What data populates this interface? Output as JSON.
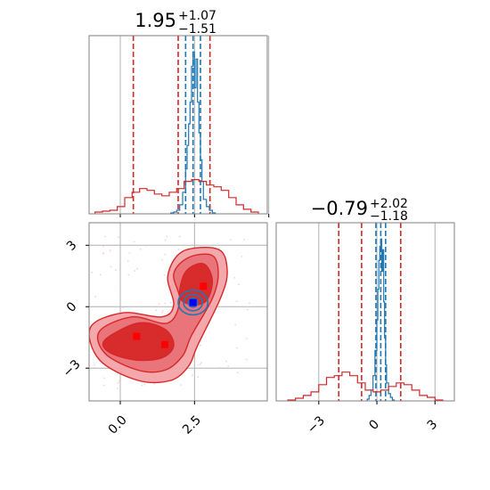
{
  "chart_data": [
    {
      "type": "histogram",
      "panel": "top-left marginal",
      "title_value": "1.95",
      "title_plus": "+1.07",
      "title_minus": "−1.51",
      "xlim": [
        -1.05,
        4.95
      ],
      "grid": true,
      "series": [
        {
          "color": "#1f77b4",
          "line_style": "solid",
          "bin_edges": [
            1.7,
            1.8,
            1.9,
            2.0,
            2.1,
            2.2,
            2.25,
            2.3,
            2.35,
            2.4,
            2.45,
            2.5,
            2.55,
            2.6,
            2.65,
            2.7,
            2.75,
            2.8,
            2.9,
            3.0,
            3.1,
            3.2
          ],
          "counts": [
            0.005,
            0.01,
            0.02,
            0.05,
            0.12,
            0.25,
            0.38,
            0.5,
            0.62,
            0.82,
            0.9,
            0.7,
            0.86,
            0.62,
            0.45,
            0.3,
            0.18,
            0.08,
            0.04,
            0.02,
            0.005
          ]
        },
        {
          "color": "#d62728",
          "line_style": "solid",
          "bin_edges": [
            -0.85,
            -0.6,
            -0.35,
            -0.1,
            0.15,
            0.4,
            0.65,
            0.9,
            1.15,
            1.4,
            1.65,
            1.9,
            2.15,
            2.4,
            2.65,
            2.9,
            3.15,
            3.4,
            3.65,
            3.9,
            4.15,
            4.4,
            4.65
          ],
          "counts": [
            0.01,
            0.015,
            0.02,
            0.04,
            0.09,
            0.12,
            0.14,
            0.13,
            0.11,
            0.1,
            0.12,
            0.14,
            0.18,
            0.19,
            0.18,
            0.16,
            0.15,
            0.13,
            0.09,
            0.05,
            0.025,
            0.01
          ]
        }
      ],
      "quantile_lines": [
        {
          "color": "#1f77b4",
          "values": [
            2.2,
            2.45,
            2.7
          ]
        },
        {
          "color": "#d62728",
          "values": [
            0.44,
            1.95,
            3.02
          ]
        }
      ]
    },
    {
      "type": "contour",
      "panel": "bottom-left 2D density",
      "xlim": [
        -1.05,
        4.95
      ],
      "ylim": [
        -4.6,
        4.1
      ],
      "yticks": [
        "3",
        "0",
        "−3"
      ],
      "xticks": [
        "0.0",
        "2.5"
      ],
      "grid": true,
      "red_contours": [
        {
          "level": "outer",
          "color": "#d62728",
          "fill": "#f4a3a8",
          "points": [
            [
              -1.0,
              -1.0
            ],
            [
              0.1,
              -0.3
            ],
            [
              1.4,
              -0.5
            ],
            [
              1.8,
              0.1
            ],
            [
              1.6,
              1.5
            ],
            [
              2.1,
              2.7
            ],
            [
              3.3,
              2.8
            ],
            [
              3.6,
              1.8
            ],
            [
              3.4,
              0.5
            ],
            [
              2.6,
              -1.9
            ],
            [
              2.3,
              -2.9
            ],
            [
              1.7,
              -3.6
            ],
            [
              0.6,
              -3.6
            ],
            [
              -0.7,
              -2.6
            ]
          ]
        },
        {
          "level": "middle",
          "color": "#d62728",
          "fill": "#e87277",
          "points": [
            [
              -0.7,
              -1.2
            ],
            [
              0.4,
              -0.5
            ],
            [
              1.6,
              -0.8
            ],
            [
              2.0,
              0.3
            ],
            [
              1.8,
              1.6
            ],
            [
              2.3,
              2.4
            ],
            [
              3.1,
              2.5
            ],
            [
              3.3,
              1.6
            ],
            [
              3.1,
              0.4
            ],
            [
              2.4,
              -1.4
            ],
            [
              2.1,
              -2.4
            ],
            [
              1.5,
              -3.1
            ],
            [
              0.6,
              -3.1
            ],
            [
              -0.5,
              -2.3
            ]
          ]
        },
        {
          "level": "inner",
          "color": "#d62728",
          "fill": "#d62728",
          "points": [
            [
              -0.5,
              -1.6
            ],
            [
              0.6,
              -0.8
            ],
            [
              1.5,
              -1.1
            ],
            [
              1.8,
              -1.9
            ],
            [
              1.4,
              -2.5
            ],
            [
              0.5,
              -2.6
            ],
            [
              -0.4,
              -2.2
            ]
          ]
        },
        {
          "level": "inner2",
          "color": "#d62728",
          "fill": "#d62728",
          "points": [
            [
              2.0,
              0.5
            ],
            [
              2.2,
              1.7
            ],
            [
              2.8,
              2.1
            ],
            [
              3.1,
              1.3
            ],
            [
              2.9,
              0.3
            ],
            [
              2.4,
              0.1
            ]
          ]
        }
      ],
      "blue_contours": [
        {
          "color": "#1f77b4",
          "rx": 0.5,
          "ry": 0.6,
          "cx": 2.45,
          "cy": 0.2
        },
        {
          "color": "#1f77b4",
          "rx": 0.32,
          "ry": 0.4,
          "cx": 2.45,
          "cy": 0.2
        },
        {
          "color": "#1f77b4",
          "rx": 0.16,
          "ry": 0.22,
          "cx": 2.45,
          "cy": 0.2
        }
      ],
      "red_markers": [
        [
          0.55,
          -1.45
        ],
        [
          1.5,
          -1.85
        ],
        [
          2.8,
          1.0
        ]
      ],
      "blue_marker": [
        2.45,
        0.2
      ]
    },
    {
      "type": "histogram",
      "panel": "bottom-right marginal",
      "title_value": "−0.79",
      "title_plus": "+2.02",
      "title_minus": "−1.18",
      "xlim": [
        -5.2,
        4.0
      ],
      "xticks": [
        "−3",
        "0",
        "3"
      ],
      "grid": true,
      "series": [
        {
          "color": "#1f77b4",
          "line_style": "solid",
          "bin_edges": [
            -0.5,
            -0.4,
            -0.3,
            -0.2,
            -0.1,
            0.0,
            0.05,
            0.1,
            0.15,
            0.2,
            0.25,
            0.3,
            0.35,
            0.4,
            0.45,
            0.5,
            0.6,
            0.7,
            0.8,
            0.9
          ],
          "counts": [
            0.01,
            0.03,
            0.06,
            0.14,
            0.28,
            0.45,
            0.62,
            0.78,
            0.86,
            0.9,
            0.72,
            0.84,
            0.55,
            0.35,
            0.2,
            0.1,
            0.04,
            0.02,
            0.005
          ]
        },
        {
          "color": "#d62728",
          "line_style": "solid",
          "bin_edges": [
            -4.6,
            -4.2,
            -3.8,
            -3.4,
            -3.0,
            -2.6,
            -2.2,
            -1.8,
            -1.4,
            -1.0,
            -0.6,
            -0.2,
            0.2,
            0.6,
            1.0,
            1.4,
            1.8,
            2.2,
            2.6,
            3.0,
            3.4
          ],
          "counts": [
            0.005,
            0.015,
            0.03,
            0.05,
            0.09,
            0.13,
            0.14,
            0.16,
            0.14,
            0.1,
            0.06,
            0.05,
            0.06,
            0.08,
            0.1,
            0.09,
            0.06,
            0.03,
            0.02,
            0.005
          ]
        }
      ],
      "quantile_lines": [
        {
          "color": "#1f77b4",
          "values": [
            -0.05,
            0.2,
            0.45
          ]
        },
        {
          "color": "#d62728",
          "values": [
            -1.97,
            -0.79,
            1.23
          ]
        }
      ]
    }
  ]
}
